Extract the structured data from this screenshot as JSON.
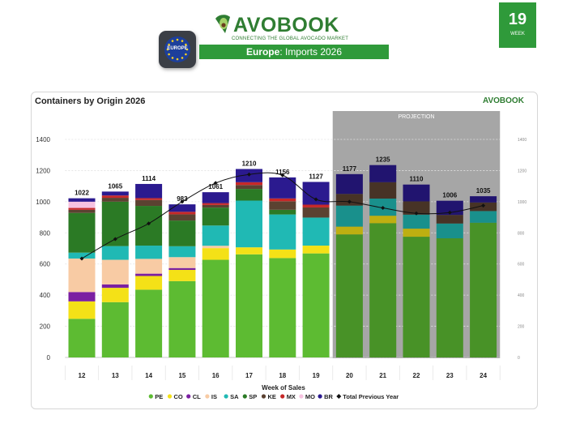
{
  "header": {
    "brand": "AVOBOOK",
    "tagline": "CONNECTING THE GLOBAL AVOCADO MARKET",
    "badge_label": "EUROPE",
    "subtitle_region": "Europe",
    "subtitle_rest": ": Imports 2026",
    "week_number": "19",
    "week_label": "WEEK"
  },
  "card": {
    "title": "Containers by Origin 2026",
    "logo": "AVOBOOK"
  },
  "colors": {
    "brand_green": "#2f9a3a",
    "projection_bg": "#a6a6a6"
  },
  "chart_data": {
    "type": "bar",
    "stacked": true,
    "title": "Containers by Origin 2026",
    "xlabel": "Week of Sales",
    "ylabel": "",
    "ylim": [
      0,
      1400
    ],
    "yticks": [
      0,
      200,
      400,
      600,
      800,
      1000,
      1200,
      1400
    ],
    "grid": true,
    "legend_position": "bottom",
    "projection_label": "PROJECTION",
    "projection_from": "20",
    "categories": [
      "12",
      "13",
      "14",
      "15",
      "16",
      "17",
      "18",
      "19",
      "20",
      "21",
      "22",
      "23",
      "24"
    ],
    "totals": [
      1022,
      1065,
      1114,
      983,
      1061,
      1210,
      1156,
      1127,
      1177,
      1235,
      1110,
      1006,
      1035
    ],
    "series": [
      {
        "name": "PE",
        "color": "#5dbb32",
        "values": [
          248,
          355,
          435,
          490,
          627,
          662,
          638,
          668,
          790,
          862,
          775,
          765,
          865
        ]
      },
      {
        "name": "CO",
        "color": "#f4e117",
        "values": [
          112,
          92,
          88,
          72,
          75,
          45,
          55,
          50,
          50,
          48,
          52,
          0,
          0
        ]
      },
      {
        "name": "CL",
        "color": "#7b1fa2",
        "values": [
          60,
          22,
          15,
          12,
          0,
          0,
          0,
          0,
          0,
          0,
          0,
          0,
          0
        ]
      },
      {
        "name": "IS",
        "color": "#f8cba4",
        "values": [
          215,
          158,
          95,
          70,
          15,
          0,
          0,
          0,
          0,
          0,
          0,
          0,
          0
        ]
      },
      {
        "name": "SA",
        "color": "#20b9b4",
        "values": [
          38,
          88,
          85,
          70,
          130,
          300,
          225,
          180,
          135,
          110,
          90,
          95,
          75
        ]
      },
      {
        "name": "SP",
        "color": "#2b7a25",
        "values": [
          255,
          285,
          255,
          165,
          115,
          75,
          30,
          0,
          0,
          0,
          0,
          0,
          0
        ]
      },
      {
        "name": "KE",
        "color": "#5b4231",
        "values": [
          20,
          25,
          38,
          40,
          17,
          25,
          55,
          65,
          75,
          105,
          85,
          55,
          55
        ]
      },
      {
        "name": "MX",
        "color": "#c62828",
        "values": [
          12,
          15,
          12,
          16,
          12,
          18,
          18,
          18,
          0,
          0,
          0,
          0,
          0
        ]
      },
      {
        "name": "MO",
        "color": "#f6c2e0",
        "values": [
          40,
          0,
          0,
          0,
          0,
          0,
          0,
          0,
          0,
          0,
          0,
          0,
          0
        ]
      },
      {
        "name": "BR",
        "color": "#2b1a8f",
        "values": [
          22,
          25,
          91,
          48,
          70,
          85,
          135,
          146,
          127,
          110,
          108,
          91,
          40
        ]
      }
    ],
    "previous_year": {
      "name": "Total Previous Year",
      "values": [
        635,
        760,
        860,
        1000,
        1120,
        1175,
        1170,
        1015,
        1000,
        960,
        925,
        930,
        975
      ]
    }
  }
}
